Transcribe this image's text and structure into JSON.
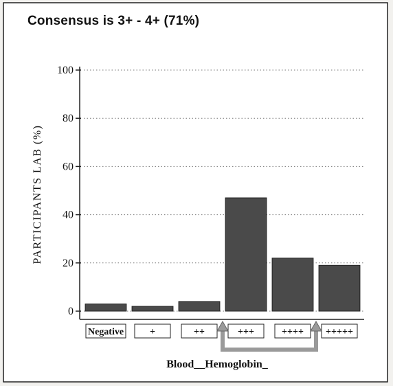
{
  "chart_data": {
    "type": "bar",
    "title": "Consensus is 3+ - 4+ (71%)",
    "xlabel": "Blood__Hemoglobin_",
    "ylabel": "PARTICIPANTS LAB (%)",
    "categories": [
      "Negative",
      "+",
      "++",
      "+++",
      "++++",
      "+++++"
    ],
    "values": [
      3,
      2,
      4,
      47,
      22,
      19
    ],
    "ylim": [
      0,
      100
    ],
    "yticks": [
      "0",
      "20",
      "40",
      "60",
      "80",
      "100"
    ],
    "grid": "dotted horizontal",
    "bar_color": "#4a4a4a",
    "arrow_color": "#9a9a9a",
    "highlight": [
      "+++",
      "++++"
    ]
  }
}
